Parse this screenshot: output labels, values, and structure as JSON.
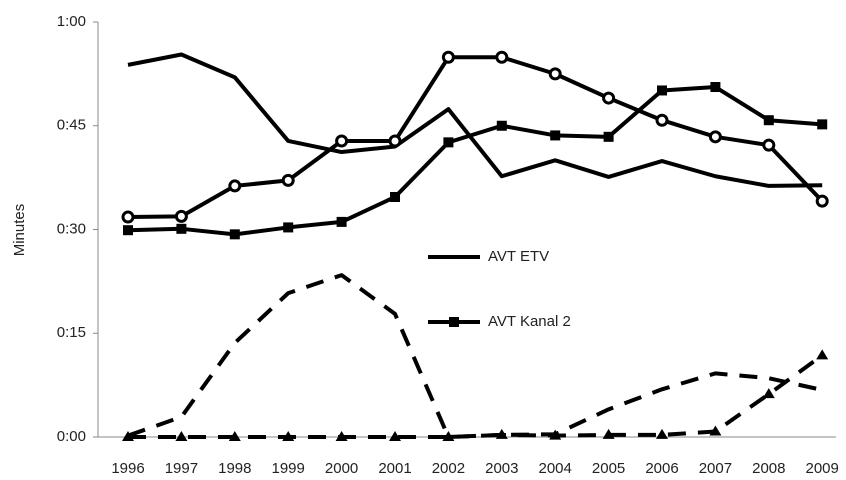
{
  "chart_data": {
    "type": "line",
    "y_label": "Minutes",
    "categories": [
      "1996",
      "1997",
      "1998",
      "1999",
      "2000",
      "2001",
      "2002",
      "2003",
      "2004",
      "2005",
      "2006",
      "2007",
      "2008",
      "2009"
    ],
    "ylim": [
      0,
      60
    ],
    "yticks": [
      {
        "value": 0,
        "label": "0:00"
      },
      {
        "value": 15,
        "label": "0:15"
      },
      {
        "value": 30,
        "label": "0:30"
      },
      {
        "value": 45,
        "label": "0:45"
      },
      {
        "value": 60,
        "label": "1:00"
      }
    ],
    "series": [
      {
        "name": "AVT ETV",
        "color": "#000000",
        "dash": false,
        "marker": "none",
        "values": [
          53.8,
          55.3,
          52,
          42.8,
          41.2,
          42,
          47.4,
          37.7,
          40,
          37.6,
          39.9,
          37.7,
          36.3,
          36.4
        ]
      },
      {
        "name": "AVT Kanal 2",
        "color": "#000000",
        "dash": false,
        "marker": "square",
        "values": [
          29.9,
          30.1,
          29.3,
          30.3,
          31.1,
          34.7,
          42.6,
          45,
          43.6,
          43.4,
          50.1,
          50.6,
          45.8,
          45.2
        ]
      },
      {
        "color": "#000000",
        "dash": false,
        "marker": "circle",
        "values": [
          31.8,
          31.9,
          36.3,
          37.1,
          42.8,
          42.8,
          54.9,
          54.9,
          52.5,
          49,
          45.8,
          43.4,
          42.2,
          34.1
        ]
      },
      {
        "color": "#000000",
        "dash": true,
        "marker": "none",
        "values": [
          0.2,
          2.9,
          13.6,
          20.8,
          23.4,
          17.8,
          0,
          0.3,
          0.4,
          4,
          6.9,
          9.2,
          8.5,
          6.8
        ]
      },
      {
        "color": "#000000",
        "dash": true,
        "marker": "triangle",
        "values": [
          0,
          0,
          0,
          0,
          0,
          0,
          0,
          0.3,
          0.2,
          0.3,
          0.3,
          0.8,
          6.2,
          11.8
        ]
      }
    ]
  }
}
